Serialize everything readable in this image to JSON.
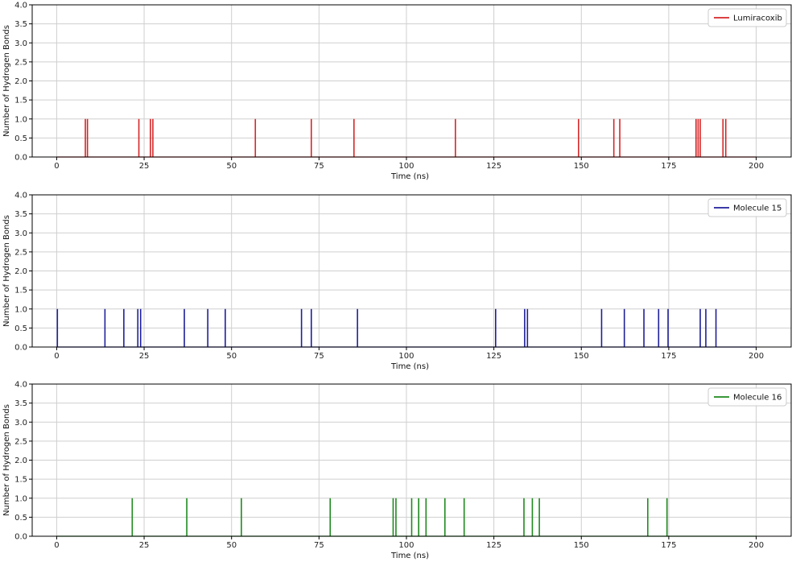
{
  "chart_data": [
    {
      "type": "line",
      "xlabel": "Time (ns)",
      "ylabel": "Number of Hydrogen Bonds",
      "xlim": [
        -7,
        210
      ],
      "ylim": [
        0,
        4
      ],
      "xticks": [
        0,
        25,
        50,
        75,
        100,
        125,
        150,
        175,
        200
      ],
      "yticks": [
        0.0,
        0.5,
        1.0,
        1.5,
        2.0,
        2.5,
        3.0,
        3.5,
        4.0
      ],
      "grid": true,
      "legend_position": "top-right",
      "series": [
        {
          "name": "Lumiracoxib",
          "color": "#d62728",
          "x_range": [
            0,
            200
          ],
          "spikes": [
            8.2,
            8.8,
            23.5,
            26.8,
            27.5,
            56.8,
            72.8,
            85.0,
            114.0,
            149.2,
            159.3,
            161.0,
            182.8,
            183.4,
            184.0,
            190.5,
            191.3
          ]
        }
      ]
    },
    {
      "type": "line",
      "xlabel": "Time (ns)",
      "ylabel": "Number of Hydrogen Bonds",
      "xlim": [
        -7,
        210
      ],
      "ylim": [
        0,
        4
      ],
      "xticks": [
        0,
        25,
        50,
        75,
        100,
        125,
        150,
        175,
        200
      ],
      "yticks": [
        0.0,
        0.5,
        1.0,
        1.5,
        2.0,
        2.5,
        3.0,
        3.5,
        4.0
      ],
      "grid": true,
      "legend_position": "top-right",
      "series": [
        {
          "name": "Molecule 15",
          "color": "#1f1f9a",
          "x_range": [
            0,
            200
          ],
          "spikes": [
            0.2,
            13.8,
            19.2,
            23.2,
            24.0,
            36.5,
            43.2,
            48.2,
            70.0,
            72.8,
            86.0,
            125.5,
            133.8,
            134.6,
            155.8,
            162.3,
            167.9,
            172.1,
            174.8,
            184.0,
            185.6,
            188.5
          ]
        }
      ]
    },
    {
      "type": "line",
      "xlabel": "Time (ns)",
      "ylabel": "Number of Hydrogen Bonds",
      "xlim": [
        -7,
        210
      ],
      "ylim": [
        0,
        4
      ],
      "xticks": [
        0,
        25,
        50,
        75,
        100,
        125,
        150,
        175,
        200
      ],
      "yticks": [
        0.0,
        0.5,
        1.0,
        1.5,
        2.0,
        2.5,
        3.0,
        3.5,
        4.0
      ],
      "grid": true,
      "legend_position": "top-right",
      "series": [
        {
          "name": "Molecule 16",
          "color": "#1e8a1e",
          "x_range": [
            0,
            200
          ],
          "spikes": [
            21.6,
            37.2,
            52.8,
            78.2,
            96.2,
            97.0,
            101.5,
            103.5,
            105.6,
            111.0,
            116.5,
            133.6,
            136.0,
            138.0,
            169.0,
            174.5
          ]
        }
      ]
    }
  ]
}
